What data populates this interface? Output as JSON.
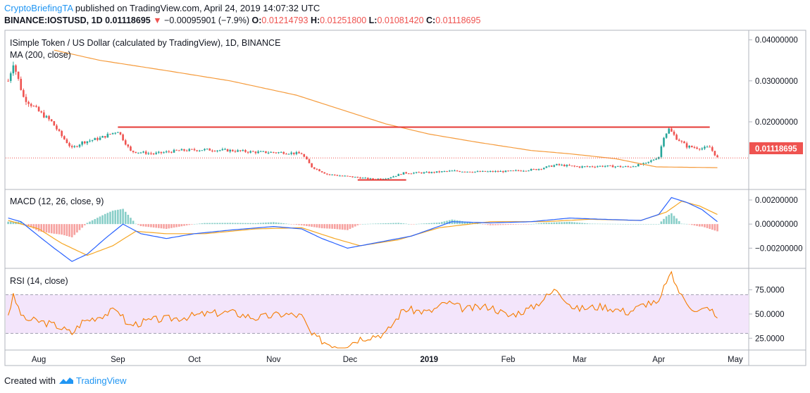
{
  "header": {
    "author": "CryptoBriefingTA",
    "published": "published on TradingView.com, April 24, 2019 14:07:32 UTC",
    "symbol": "BINANCE:IOSTUSD, 1D",
    "price": "0.01118695",
    "change": "−0.00095901 (−7.9%)",
    "o_label": "O:",
    "o": "0.01214793",
    "h_label": "H:",
    "h": "0.01251800",
    "l_label": "L:",
    "l": "0.01081420",
    "c_label": "C:",
    "c": "0.01118695"
  },
  "footer": {
    "created_with": "Created with",
    "brand": "TradingView"
  },
  "colors": {
    "up": "#26a69a",
    "down": "#ef5350",
    "ma": "#f59b3c",
    "macd": "#2962ff",
    "signal": "#f5a623",
    "rsi": "#f57c00",
    "rsi_band": "#f3e5fb",
    "level_line": "#e53935",
    "price_tag": "#ef5350"
  },
  "chart_data": [
    {
      "type": "candlestick",
      "title": "ISimple Token / US Dollar (calculated by TradingView), 1D, BINANCE",
      "indicator_label": "MA (200, close)",
      "price_tag": "0.01118695",
      "ylim": [
        0.004,
        0.042
      ],
      "y_ticks": [
        "0.04000000",
        "0.03000000",
        "0.02000000"
      ],
      "x_ticks": [
        "Aug",
        "Sep",
        "Oct",
        "Nov",
        "Dec",
        "2019",
        "Feb",
        "Mar",
        "Apr",
        "May"
      ],
      "price_path": [
        [
          "2018-07-20",
          0.03
        ],
        [
          "2018-07-22",
          0.0345
        ],
        [
          "2018-07-26",
          0.026
        ],
        [
          "2018-08-01",
          0.0225
        ],
        [
          "2018-08-06",
          0.02
        ],
        [
          "2018-08-10",
          0.0165
        ],
        [
          "2018-08-14",
          0.0135
        ],
        [
          "2018-08-18",
          0.015
        ],
        [
          "2018-08-25",
          0.016
        ],
        [
          "2018-09-01",
          0.0178
        ],
        [
          "2018-09-06",
          0.0128
        ],
        [
          "2018-09-15",
          0.0122
        ],
        [
          "2018-09-25",
          0.013
        ],
        [
          "2018-10-05",
          0.0132
        ],
        [
          "2018-10-15",
          0.013
        ],
        [
          "2018-10-25",
          0.0126
        ],
        [
          "2018-11-05",
          0.0125
        ],
        [
          "2018-11-12",
          0.0122
        ],
        [
          "2018-11-16",
          0.009
        ],
        [
          "2018-11-22",
          0.0072
        ],
        [
          "2018-12-01",
          0.0066
        ],
        [
          "2018-12-10",
          0.006
        ],
        [
          "2018-12-16",
          0.0063
        ],
        [
          "2018-12-22",
          0.0075
        ],
        [
          "2019-01-01",
          0.0076
        ],
        [
          "2019-01-10",
          0.008
        ],
        [
          "2019-01-20",
          0.0078
        ],
        [
          "2019-02-01",
          0.0079
        ],
        [
          "2019-02-12",
          0.0084
        ],
        [
          "2019-02-20",
          0.0095
        ],
        [
          "2019-03-01",
          0.009
        ],
        [
          "2019-03-10",
          0.0092
        ],
        [
          "2019-03-20",
          0.009
        ],
        [
          "2019-03-27",
          0.0098
        ],
        [
          "2019-04-01",
          0.0115
        ],
        [
          "2019-04-03",
          0.0165
        ],
        [
          "2019-04-05",
          0.0182
        ],
        [
          "2019-04-08",
          0.016
        ],
        [
          "2019-04-12",
          0.014
        ],
        [
          "2019-04-18",
          0.0135
        ],
        [
          "2019-04-21",
          0.0138
        ],
        [
          "2019-04-24",
          0.0112
        ]
      ],
      "ma_200": [
        [
          "2018-08-07",
          0.0375
        ],
        [
          "2018-08-25",
          0.035
        ],
        [
          "2018-09-20",
          0.0325
        ],
        [
          "2018-10-15",
          0.03
        ],
        [
          "2018-11-10",
          0.0265
        ],
        [
          "2018-11-30",
          0.0225
        ],
        [
          "2018-12-15",
          0.0195
        ],
        [
          "2019-01-01",
          0.017
        ],
        [
          "2019-01-20",
          0.015
        ],
        [
          "2019-02-10",
          0.013
        ],
        [
          "2019-02-25",
          0.0122
        ],
        [
          "2019-03-15",
          0.011
        ],
        [
          "2019-03-31",
          0.009
        ],
        [
          "2019-04-24",
          0.0088
        ]
      ],
      "resistance": {
        "from": "2018-09-01",
        "to": "2019-04-21",
        "value": 0.0187
      },
      "support": {
        "from": "2018-12-04",
        "to": "2018-12-23",
        "value": 0.0058
      }
    },
    {
      "type": "macd",
      "label": "MACD (12, 26, close, 9)",
      "ylim": [
        -0.0035,
        0.0027
      ],
      "y_ticks": [
        "0.00200000",
        "0.00000000",
        "−0.00200000"
      ],
      "macd": [
        [
          "2018-07-20",
          0.0005
        ],
        [
          "2018-07-25",
          0.0002
        ],
        [
          "2018-08-01",
          -0.001
        ],
        [
          "2018-08-07",
          -0.002
        ],
        [
          "2018-08-14",
          -0.0031
        ],
        [
          "2018-08-20",
          -0.0025
        ],
        [
          "2018-08-27",
          -0.0012
        ],
        [
          "2018-09-03",
          0.0
        ],
        [
          "2018-09-10",
          -0.0008
        ],
        [
          "2018-09-20",
          -0.0012
        ],
        [
          "2018-10-01",
          -0.0008
        ],
        [
          "2018-10-15",
          -0.0005
        ],
        [
          "2018-11-01",
          -0.0002
        ],
        [
          "2018-11-12",
          -0.0004
        ],
        [
          "2018-11-20",
          -0.0012
        ],
        [
          "2018-11-30",
          -0.002
        ],
        [
          "2018-12-10",
          -0.0016
        ],
        [
          "2018-12-25",
          -0.001
        ],
        [
          "2019-01-10",
          0.0002
        ],
        [
          "2019-01-25",
          0.0001
        ],
        [
          "2019-02-10",
          0.0002
        ],
        [
          "2019-02-25",
          0.0005
        ],
        [
          "2019-03-10",
          0.0004
        ],
        [
          "2019-03-25",
          0.0003
        ],
        [
          "2019-04-01",
          0.0008
        ],
        [
          "2019-04-06",
          0.0022
        ],
        [
          "2019-04-12",
          0.0018
        ],
        [
          "2019-04-18",
          0.0012
        ],
        [
          "2019-04-24",
          0.0002
        ]
      ],
      "signal": [
        [
          "2018-07-20",
          0.0003
        ],
        [
          "2018-08-01",
          -0.0004
        ],
        [
          "2018-08-10",
          -0.0016
        ],
        [
          "2018-08-20",
          -0.0026
        ],
        [
          "2018-08-30",
          -0.0018
        ],
        [
          "2018-09-08",
          -0.0006
        ],
        [
          "2018-09-20",
          -0.0008
        ],
        [
          "2018-10-05",
          -0.0008
        ],
        [
          "2018-10-25",
          -0.0004
        ],
        [
          "2018-11-12",
          -0.0003
        ],
        [
          "2018-11-25",
          -0.0012
        ],
        [
          "2018-12-05",
          -0.0018
        ],
        [
          "2018-12-20",
          -0.0013
        ],
        [
          "2019-01-05",
          -0.0003
        ],
        [
          "2019-01-25",
          0.0002
        ],
        [
          "2019-02-15",
          0.0002
        ],
        [
          "2019-03-05",
          0.0004
        ],
        [
          "2019-03-25",
          0.0003
        ],
        [
          "2019-04-04",
          0.001
        ],
        [
          "2019-04-10",
          0.0019
        ],
        [
          "2019-04-17",
          0.0015
        ],
        [
          "2019-04-24",
          0.0008
        ]
      ]
    },
    {
      "type": "rsi",
      "label": "RSI (14, close)",
      "ylim": [
        15,
        95
      ],
      "band": [
        30,
        70
      ],
      "y_ticks": [
        "75.0000",
        "50.0000",
        "25.0000"
      ],
      "rsi": [
        [
          "2018-07-20",
          50
        ],
        [
          "2018-07-22",
          68
        ],
        [
          "2018-07-26",
          45
        ],
        [
          "2018-08-02",
          42
        ],
        [
          "2018-08-08",
          38
        ],
        [
          "2018-08-14",
          30
        ],
        [
          "2018-08-18",
          42
        ],
        [
          "2018-08-25",
          48
        ],
        [
          "2018-09-01",
          55
        ],
        [
          "2018-09-05",
          38
        ],
        [
          "2018-09-15",
          44
        ],
        [
          "2018-09-25",
          46
        ],
        [
          "2018-10-05",
          50
        ],
        [
          "2018-10-15",
          52
        ],
        [
          "2018-10-25",
          46
        ],
        [
          "2018-11-05",
          50
        ],
        [
          "2018-11-12",
          48
        ],
        [
          "2018-11-16",
          28
        ],
        [
          "2018-11-22",
          20
        ],
        [
          "2018-11-28",
          16
        ],
        [
          "2018-12-05",
          25
        ],
        [
          "2018-12-15",
          30
        ],
        [
          "2018-12-22",
          55
        ],
        [
          "2019-01-01",
          52
        ],
        [
          "2019-01-08",
          62
        ],
        [
          "2019-01-15",
          55
        ],
        [
          "2019-01-25",
          58
        ],
        [
          "2019-02-01",
          48
        ],
        [
          "2019-02-10",
          56
        ],
        [
          "2019-02-20",
          76
        ],
        [
          "2019-02-27",
          55
        ],
        [
          "2019-03-10",
          58
        ],
        [
          "2019-03-20",
          52
        ],
        [
          "2019-03-28",
          62
        ],
        [
          "2019-04-01",
          60
        ],
        [
          "2019-04-04",
          85
        ],
        [
          "2019-04-06",
          90
        ],
        [
          "2019-04-10",
          68
        ],
        [
          "2019-04-16",
          52
        ],
        [
          "2019-04-21",
          57
        ],
        [
          "2019-04-24",
          44
        ]
      ]
    }
  ]
}
